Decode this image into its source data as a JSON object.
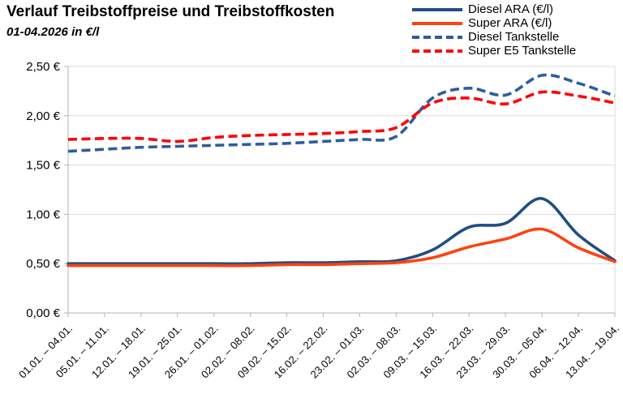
{
  "title": "Verlauf Treibstoffpreise und Treibstoffkosten",
  "subtitle": "01-04.2026 in €/l",
  "colors": {
    "grid": "#d9d9d9",
    "axis": "#b3b3b3",
    "text": "#000000",
    "diesel_ara": "#1F4E82",
    "super_ara": "#FF420E",
    "diesel_tankstelle": "#2E5C9F",
    "super_e5_tankstelle": "#FF0000"
  },
  "chart_data": {
    "type": "line",
    "smooth": true,
    "title": "Verlauf Treibstoffpreise und Treibstoffkosten",
    "subtitle": "01-04.2026 in €/l",
    "xlabel": "",
    "ylabel": "",
    "ylim": [
      0,
      2.5
    ],
    "ytick_step": 0.5,
    "ytick_labels": [
      "0,00 €",
      "0,50 €",
      "1,00 €",
      "1,50 €",
      "2,00 €",
      "2,50 €"
    ],
    "grid": true,
    "legend_position": "top-right",
    "categories": [
      "01.01. – 04.01.",
      "05.01. – 11.01.",
      "12.01. – 18.01.",
      "19.01. – 25.01.",
      "26.01. – 01.02.",
      "02.02. – 08.02.",
      "09.02. – 15.02.",
      "16.02. – 22.02.",
      "23.02. – 01.03.",
      "02.03. – 08.03.",
      "09.03. – 15.03.",
      "16.03. – 22.03.",
      "23.03. – 29.03.",
      "30.03. – 05.04.",
      "06.04. – 12.04.",
      "13.04. – 19.04."
    ],
    "series": [
      {
        "name": "Diesel ARA (€/l)",
        "style": "solid",
        "color": "#1F4E82",
        "values": [
          0.5,
          0.5,
          0.5,
          0.5,
          0.5,
          0.5,
          0.51,
          0.51,
          0.52,
          0.53,
          0.64,
          0.87,
          0.91,
          1.16,
          0.79,
          0.53
        ]
      },
      {
        "name": "Super ARA (€/l)",
        "style": "solid",
        "color": "#FF420E",
        "values": [
          0.48,
          0.48,
          0.48,
          0.48,
          0.48,
          0.48,
          0.49,
          0.49,
          0.5,
          0.51,
          0.56,
          0.67,
          0.75,
          0.85,
          0.66,
          0.52
        ]
      },
      {
        "name": "Diesel Tankstelle",
        "style": "dashed",
        "color": "#2E5C9F",
        "values": [
          1.64,
          1.66,
          1.68,
          1.69,
          1.7,
          1.71,
          1.72,
          1.74,
          1.76,
          1.79,
          2.18,
          2.28,
          2.21,
          2.41,
          2.33,
          2.2
        ]
      },
      {
        "name": "Super E5 Tankstelle",
        "style": "dashed",
        "color": "#FF0000",
        "values": [
          1.76,
          1.77,
          1.77,
          1.74,
          1.78,
          1.8,
          1.81,
          1.82,
          1.84,
          1.88,
          2.13,
          2.18,
          2.12,
          2.24,
          2.2,
          2.13
        ]
      }
    ]
  }
}
